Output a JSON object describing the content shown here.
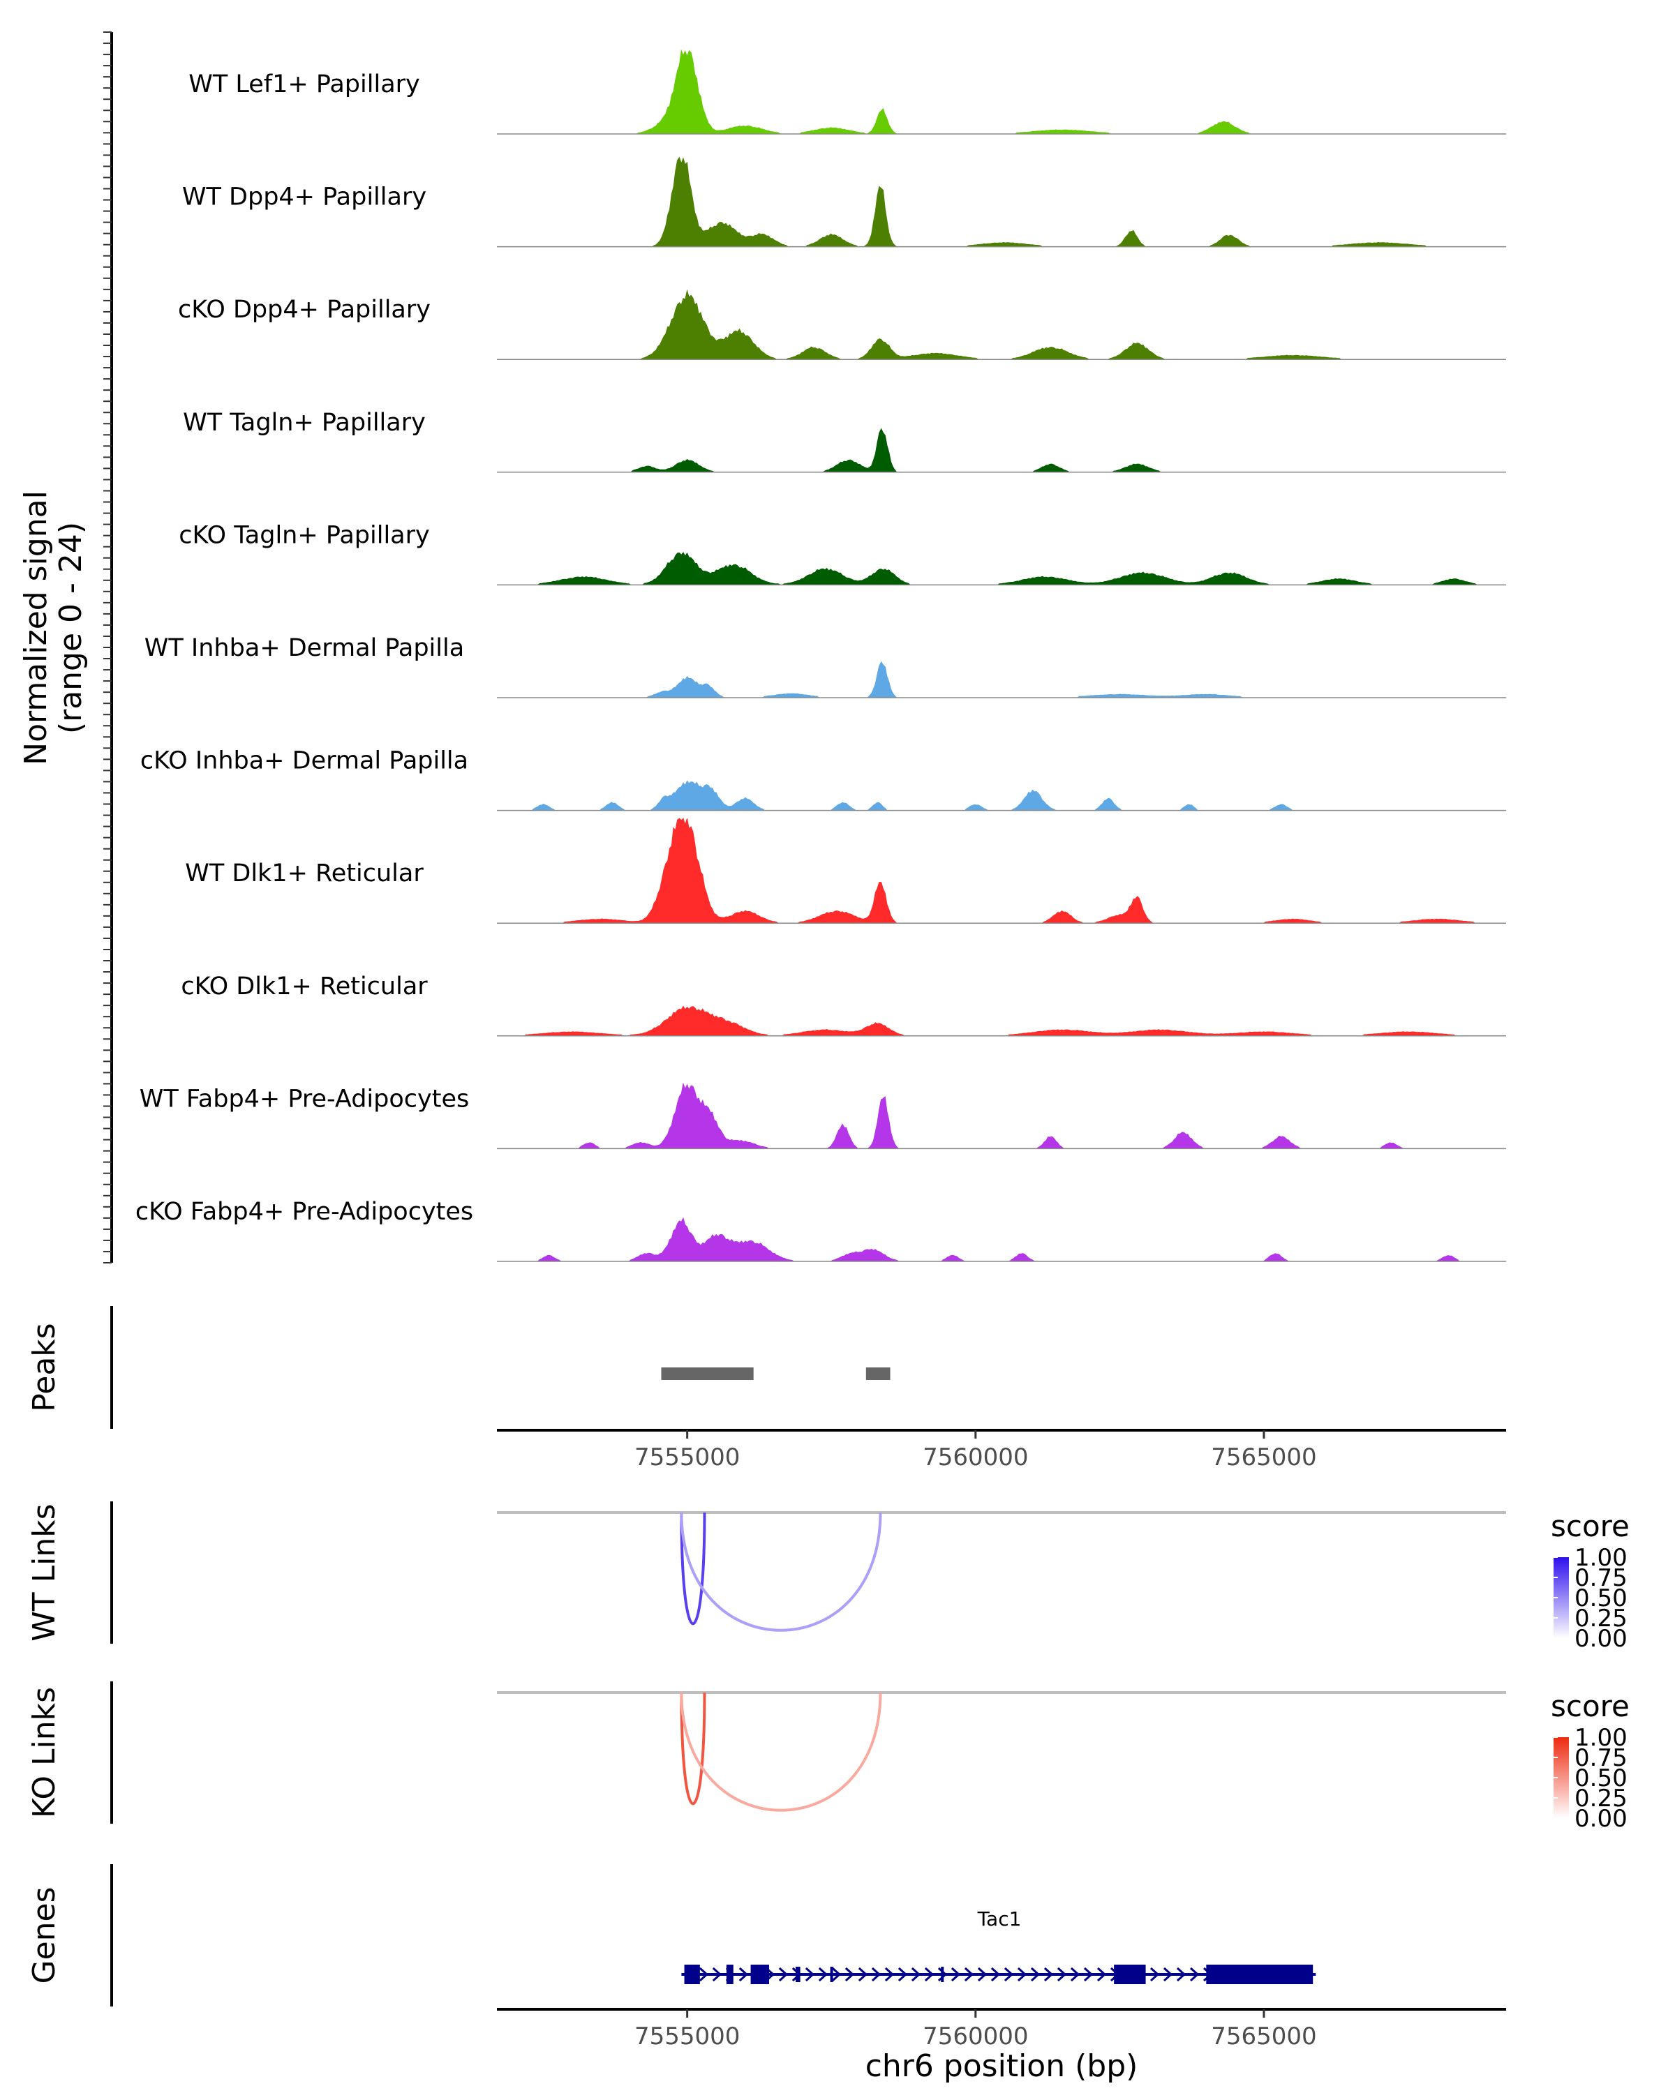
{
  "chart_data": {
    "type": "coverage",
    "chromosome": "chr6",
    "xlim": [
      7551700,
      7569200
    ],
    "x_ticks": [
      7555000,
      7560000,
      7565000
    ],
    "x_tick_labels": [
      "7555000",
      "7560000",
      "7565000"
    ],
    "xlabel": "chr6 position (bp)",
    "coverage": {
      "ylabel_line1": "Normalized signal",
      "ylabel_line2": "(range 0 - 24)",
      "ylim": [
        0,
        24
      ],
      "tracks": [
        {
          "name": "WT Lef1+ Papillary",
          "color": "#66CC00",
          "peaks": [
            [
              7555000,
              20,
              180
            ],
            [
              7558380,
              6,
              90
            ],
            [
              7554700,
              3,
              250
            ],
            [
              7556000,
              2,
              300
            ],
            [
              7564300,
              3,
              200
            ],
            [
              7557500,
              1.5,
              300
            ],
            [
              7561500,
              1,
              500
            ]
          ]
        },
        {
          "name": "WT Dpp4+ Papillary",
          "color": "#4D8000",
          "peaks": [
            [
              7554900,
              23,
              160
            ],
            [
              7558350,
              15,
              90
            ],
            [
              7555600,
              6,
              250
            ],
            [
              7556300,
              3,
              200
            ],
            [
              7557500,
              3,
              200
            ],
            [
              7562700,
              4,
              100
            ],
            [
              7564400,
              3,
              150
            ],
            [
              7560500,
              1,
              400
            ],
            [
              7567000,
              1,
              500
            ]
          ]
        },
        {
          "name": "cKO Dpp4+ Papillary",
          "color": "#4D8000",
          "peaks": [
            [
              7555000,
              16,
              280
            ],
            [
              7555900,
              7,
              250
            ],
            [
              7558350,
              5,
              150
            ],
            [
              7557200,
              3,
              200
            ],
            [
              7562800,
              4,
              200
            ],
            [
              7561300,
              3,
              300
            ],
            [
              7559300,
              1.5,
              400
            ],
            [
              7565500,
              1,
              500
            ]
          ]
        },
        {
          "name": "WT Tagln+ Papillary",
          "color": "#005C00",
          "peaks": [
            [
              7558380,
              11,
              90
            ],
            [
              7557800,
              3,
              200
            ],
            [
              7555000,
              3,
              200
            ],
            [
              7554300,
              1.5,
              150
            ],
            [
              7562800,
              2,
              200
            ],
            [
              7561300,
              2,
              150
            ]
          ]
        },
        {
          "name": "cKO Tagln+ Papillary",
          "color": "#005C00",
          "peaks": [
            [
              7554900,
              8,
              250
            ],
            [
              7555800,
              5,
              300
            ],
            [
              7557400,
              4,
              300
            ],
            [
              7558400,
              4,
              200
            ],
            [
              7562900,
              3,
              400
            ],
            [
              7564400,
              3,
              300
            ],
            [
              7553200,
              2,
              400
            ],
            [
              7561200,
              2,
              400
            ],
            [
              7566300,
              1.5,
              300
            ],
            [
              7568300,
              1.5,
              200
            ]
          ]
        },
        {
          "name": "WT Inhba+ Dermal Papilla",
          "color": "#5EA8E6",
          "peaks": [
            [
              7558380,
              9,
              90
            ],
            [
              7555000,
              5,
              150
            ],
            [
              7555350,
              3,
              120
            ],
            [
              7554600,
              1.5,
              150
            ],
            [
              7556800,
              1,
              300
            ],
            [
              7562500,
              0.8,
              500
            ],
            [
              7564000,
              0.8,
              400
            ]
          ]
        },
        {
          "name": "cKO Inhba+ Dermal Papilla",
          "color": "#5EA8E6",
          "peaks": [
            [
              7555000,
              7,
              200
            ],
            [
              7555400,
              5,
              150
            ],
            [
              7556000,
              3,
              150
            ],
            [
              7561000,
              5,
              150
            ],
            [
              7562300,
              3,
              100
            ],
            [
              7553700,
              2,
              100
            ],
            [
              7554600,
              2.5,
              100
            ],
            [
              7557700,
              2,
              100
            ],
            [
              7558300,
              2,
              80
            ],
            [
              7560000,
              1.5,
              100
            ],
            [
              7563700,
              1.5,
              80
            ],
            [
              7552500,
              1.5,
              100
            ],
            [
              7565300,
              1.5,
              100
            ]
          ]
        },
        {
          "name": "WT Dlk1+ Reticular",
          "color": "#FF2B2B",
          "peaks": [
            [
              7555000,
              23,
              220
            ],
            [
              7554700,
              10,
              200
            ],
            [
              7558350,
              10,
              100
            ],
            [
              7556000,
              3,
              250
            ],
            [
              7557600,
              3,
              300
            ],
            [
              7562800,
              6,
              100
            ],
            [
              7561500,
              3,
              150
            ],
            [
              7562500,
              2,
              200
            ],
            [
              7553500,
              1,
              400
            ],
            [
              7565500,
              1,
              300
            ],
            [
              7568000,
              1,
              400
            ]
          ]
        },
        {
          "name": "cKO Dlk1+ Reticular",
          "color": "#FF2B2B",
          "peaks": [
            [
              7555000,
              7,
              350
            ],
            [
              7555700,
              3,
              300
            ],
            [
              7558300,
              3,
              200
            ],
            [
              7557400,
              1.5,
              400
            ],
            [
              7561500,
              1.5,
              500
            ],
            [
              7563200,
              1.5,
              500
            ],
            [
              7565000,
              1,
              500
            ],
            [
              7553000,
              1,
              500
            ],
            [
              7567500,
              1,
              500
            ]
          ]
        },
        {
          "name": "WT Fabp4+ Pre-Adipocytes",
          "color": "#B535E8",
          "peaks": [
            [
              7555000,
              16,
              200
            ],
            [
              7555400,
              7,
              150
            ],
            [
              7558400,
              13,
              90
            ],
            [
              7557700,
              6,
              100
            ],
            [
              7563600,
              4,
              150
            ],
            [
              7565300,
              3,
              150
            ],
            [
              7561300,
              3,
              100
            ],
            [
              7555900,
              2,
              250
            ],
            [
              7554200,
              1.5,
              150
            ],
            [
              7553300,
              1.5,
              100
            ],
            [
              7567200,
              1.5,
              100
            ]
          ]
        },
        {
          "name": "cKO Fabp4+ Pre-Adipocytes",
          "color": "#B535E8",
          "peaks": [
            [
              7554900,
              10,
              180
            ],
            [
              7555500,
              6,
              200
            ],
            [
              7556100,
              5,
              300
            ],
            [
              7558200,
              3,
              200
            ],
            [
              7554300,
              2,
              150
            ],
            [
              7560800,
              2,
              100
            ],
            [
              7565200,
              2,
              100
            ],
            [
              7552600,
              1.5,
              100
            ],
            [
              7557800,
              1.5,
              150
            ],
            [
              7559600,
              1.5,
              100
            ],
            [
              7568200,
              1.5,
              100
            ]
          ]
        }
      ]
    },
    "peaks_panel": {
      "label": "Peaks",
      "color": "#666666",
      "regions": [
        [
          7554550,
          7556150
        ],
        [
          7558100,
          7558520
        ]
      ]
    },
    "links": [
      {
        "label": "WT Links",
        "legend_title": "score",
        "legend_ticks": [
          "1.00",
          "0.75",
          "0.50",
          "0.25",
          "0.00"
        ],
        "low_color": "#FFFFFF",
        "high_color": "#2E10EE",
        "arcs": [
          {
            "start": 7554900,
            "end": 7555300,
            "score": 0.8,
            "depth": 0.85
          },
          {
            "start": 7554900,
            "end": 7558350,
            "score": 0.4,
            "depth": 0.9
          }
        ]
      },
      {
        "label": "KO Links",
        "legend_title": "score",
        "legend_ticks": [
          "1.00",
          "0.75",
          "0.50",
          "0.25",
          "0.00"
        ],
        "low_color": "#FFFFFF",
        "high_color": "#EE2A10",
        "arcs": [
          {
            "start": 7554900,
            "end": 7555300,
            "score": 0.8,
            "depth": 0.85
          },
          {
            "start": 7554900,
            "end": 7558350,
            "score": 0.4,
            "depth": 0.9
          }
        ]
      }
    ],
    "genes": {
      "label": "Genes",
      "color": "#00008B",
      "gene_name": "Tac1",
      "start": 7554900,
      "end": 7565900,
      "exons": [
        [
          7554950,
          7555220
        ],
        [
          7555680,
          7555800
        ],
        [
          7556100,
          7556420
        ],
        [
          7556880,
          7556960
        ],
        [
          7557480,
          7557520
        ],
        [
          7559400,
          7559440
        ],
        [
          7562400,
          7562950
        ],
        [
          7564000,
          7565850
        ]
      ],
      "strand": "+"
    }
  }
}
